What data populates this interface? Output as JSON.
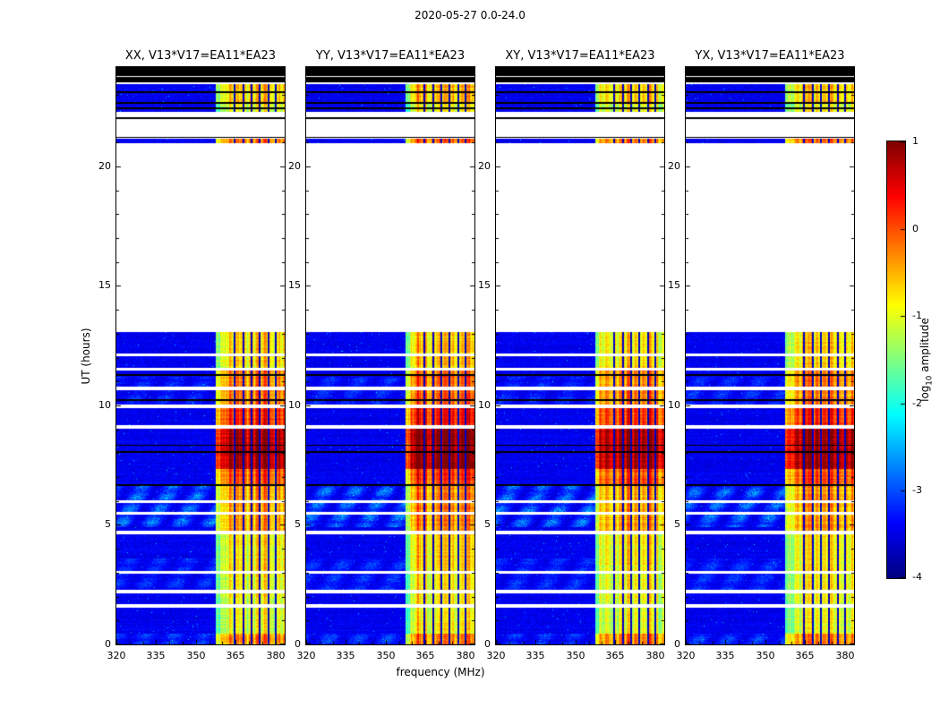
{
  "figure": {
    "suptitle": "2020-05-27 0.0-24.0",
    "xlabel": "frequency (MHz)",
    "ylabel": "UT (hours)"
  },
  "chart_data": {
    "type": "heatmap",
    "colormap": "jet",
    "panels": [
      {
        "title": "XX, V13*V17=EA11*EA23",
        "seed": 1,
        "gain": 1.0
      },
      {
        "title": "YY, V13*V17=EA11*EA23",
        "seed": 2,
        "gain": 1.12
      },
      {
        "title": "XY, V13*V17=EA11*EA23",
        "seed": 3,
        "gain": 0.96
      },
      {
        "title": "YX, V13*V17=EA11*EA23",
        "seed": 4,
        "gain": 1.06
      }
    ],
    "x_axis": {
      "label": "frequency (MHz)",
      "min": 320,
      "max": 383.5,
      "major_ticks": [
        320,
        335,
        350,
        365,
        380
      ],
      "minor_step": 5
    },
    "y_axis": {
      "label": "UT (hours)",
      "min": 0,
      "max": 24.15,
      "major_ticks": [
        0,
        5,
        10,
        15,
        20
      ],
      "minor_step": 1
    },
    "colorbar": {
      "label_prefix": "log",
      "label_sub": "10",
      "label_suffix": "amplitude",
      "min": -4,
      "max": 1,
      "ticks": [
        "1",
        "0",
        "-1",
        "-2",
        "-3",
        "-4"
      ]
    },
    "noise_floor": -3.45,
    "observation_blocks": [
      [
        0,
        13.05
      ],
      [
        20.95,
        21.15
      ],
      [
        22.28,
        22.4
      ],
      [
        22.48,
        22.62
      ],
      [
        22.68,
        23.08
      ],
      [
        23.15,
        23.45
      ]
    ],
    "flagged_black_blocks": [
      [
        21.18,
        21.23
      ],
      [
        21.98,
        22.06
      ],
      [
        22.4,
        22.48
      ],
      [
        22.62,
        22.68
      ],
      [
        23.08,
        23.15
      ],
      [
        23.52,
        23.72
      ],
      [
        23.78,
        24.2
      ]
    ],
    "scan_gaps": [
      [
        1.55,
        1.69
      ],
      [
        2.15,
        2.28
      ],
      [
        2.95,
        3.08
      ],
      [
        4.6,
        4.74
      ],
      [
        5.44,
        5.56
      ],
      [
        5.9,
        6.02
      ],
      [
        9.04,
        9.17
      ],
      [
        9.9,
        10.03
      ],
      [
        10.64,
        10.77
      ],
      [
        11.44,
        11.57
      ],
      [
        12.04,
        12.17
      ]
    ],
    "flagged_rows": [
      [
        6.62,
        6.7
      ],
      [
        8.02,
        8.08
      ],
      [
        8.3,
        8.36
      ],
      [
        10.18,
        10.25
      ],
      [
        11.22,
        11.29
      ]
    ],
    "rfi_band": {
      "f_start": 357.5,
      "notches": [
        364.5,
        368.0,
        371.0,
        374.0,
        377.3,
        380.2
      ],
      "time_profile": [
        {
          "t": [
            0,
            0.45
          ],
          "v": -0.35
        },
        {
          "t": [
            0.45,
            1.62
          ],
          "v": -1.0
        },
        {
          "t": [
            1.62,
            3.0
          ],
          "v": -0.95
        },
        {
          "t": [
            3.0,
            4.65
          ],
          "v": -0.85
        },
        {
          "t": [
            4.65,
            6.62
          ],
          "v": -0.45
        },
        {
          "t": [
            6.62,
            7.35
          ],
          "v": -0.05
        },
        {
          "t": [
            7.35,
            9.1
          ],
          "v": 0.8
        },
        {
          "t": [
            9.1,
            9.95
          ],
          "v": 0.15
        },
        {
          "t": [
            9.95,
            11.5
          ],
          "v": -0.3
        },
        {
          "t": [
            11.5,
            13.05
          ],
          "v": -0.75
        },
        {
          "t": [
            20.9,
            21.2
          ],
          "v": -0.25
        },
        {
          "t": [
            22.2,
            22.65
          ],
          "v": -1.0
        },
        {
          "t": [
            22.65,
            23.5
          ],
          "v": -0.7
        }
      ]
    },
    "broadband_enhancements": [
      {
        "t": [
          0,
          0.45
        ],
        "amp": 0.55
      },
      {
        "t": [
          2.3,
          3.6
        ],
        "amp": 0.45
      },
      {
        "t": [
          4.9,
          6.62
        ],
        "amp": 0.85
      },
      {
        "t": [
          9.95,
          11.2
        ],
        "amp": 0.4
      }
    ]
  }
}
